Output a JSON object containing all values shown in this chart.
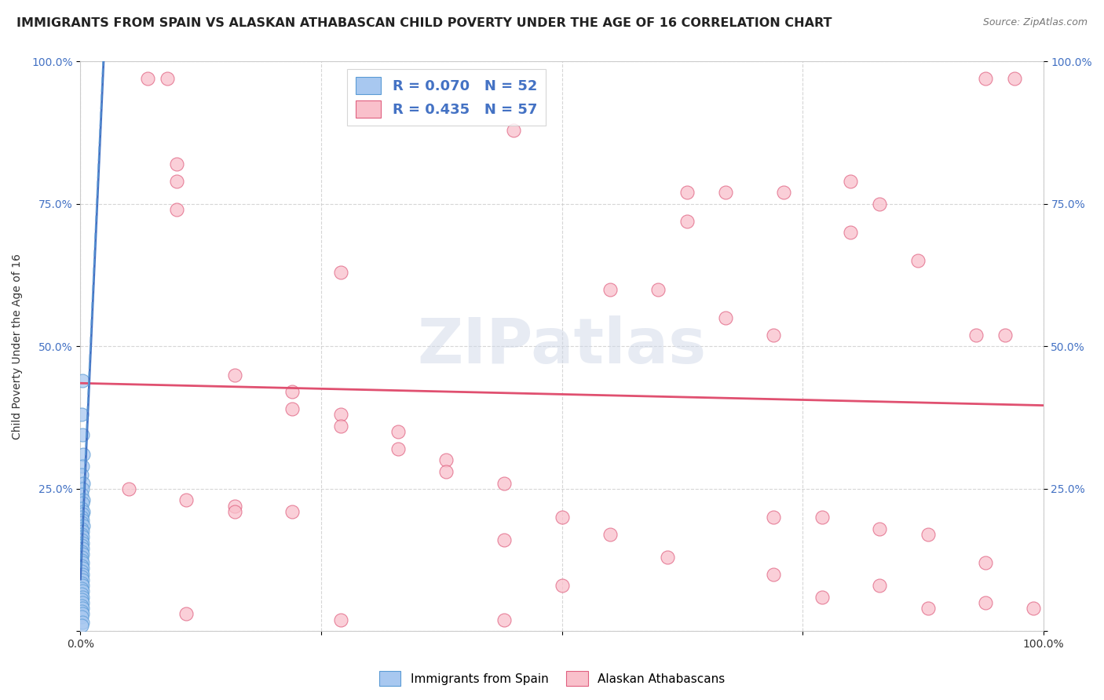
{
  "title": "IMMIGRANTS FROM SPAIN VS ALASKAN ATHABASCAN CHILD POVERTY UNDER THE AGE OF 16 CORRELATION CHART",
  "source": "Source: ZipAtlas.com",
  "ylabel": "Child Poverty Under the Age of 16",
  "xlim": [
    0,
    1
  ],
  "ylim": [
    0,
    1
  ],
  "xticks": [
    0,
    0.25,
    0.5,
    0.75,
    1.0
  ],
  "yticks": [
    0,
    0.25,
    0.5,
    0.75,
    1.0
  ],
  "xtick_labels": [
    "0.0%",
    "",
    "",
    "",
    "100.0%"
  ],
  "ytick_labels_left": [
    "",
    "25.0%",
    "50.0%",
    "75.0%",
    "100.0%"
  ],
  "ytick_labels_right": [
    "",
    "25.0%",
    "50.0%",
    "75.0%",
    "100.0%"
  ],
  "legend_blue_r": "R = 0.070",
  "legend_blue_n": "N = 52",
  "legend_pink_r": "R = 0.435",
  "legend_pink_n": "N = 57",
  "blue_label": "Immigrants from Spain",
  "pink_label": "Alaskan Athabascans",
  "background_color": "#ffffff",
  "grid_color": "#cccccc",
  "blue_fill": "#a8c8f0",
  "pink_fill": "#f9c0cb",
  "blue_edge": "#5b9bd5",
  "pink_edge": "#e06080",
  "blue_line_color": "#4472c4",
  "pink_line_color": "#e05070",
  "blue_scatter": [
    [
      0.002,
      0.44
    ],
    [
      0.001,
      0.38
    ],
    [
      0.002,
      0.345
    ],
    [
      0.003,
      0.31
    ],
    [
      0.002,
      0.29
    ],
    [
      0.001,
      0.275
    ],
    [
      0.003,
      0.26
    ],
    [
      0.002,
      0.25
    ],
    [
      0.001,
      0.24
    ],
    [
      0.003,
      0.23
    ],
    [
      0.002,
      0.225
    ],
    [
      0.001,
      0.215
    ],
    [
      0.003,
      0.21
    ],
    [
      0.002,
      0.205
    ],
    [
      0.001,
      0.2
    ],
    [
      0.002,
      0.195
    ],
    [
      0.001,
      0.19
    ],
    [
      0.003,
      0.185
    ],
    [
      0.001,
      0.18
    ],
    [
      0.002,
      0.175
    ],
    [
      0.001,
      0.17
    ],
    [
      0.002,
      0.165
    ],
    [
      0.001,
      0.16
    ],
    [
      0.002,
      0.155
    ],
    [
      0.001,
      0.15
    ],
    [
      0.002,
      0.145
    ],
    [
      0.001,
      0.14
    ],
    [
      0.002,
      0.135
    ],
    [
      0.001,
      0.13
    ],
    [
      0.001,
      0.125
    ],
    [
      0.002,
      0.12
    ],
    [
      0.001,
      0.115
    ],
    [
      0.002,
      0.11
    ],
    [
      0.001,
      0.105
    ],
    [
      0.002,
      0.1
    ],
    [
      0.001,
      0.095
    ],
    [
      0.002,
      0.09
    ],
    [
      0.001,
      0.085
    ],
    [
      0.002,
      0.08
    ],
    [
      0.001,
      0.075
    ],
    [
      0.002,
      0.07
    ],
    [
      0.001,
      0.065
    ],
    [
      0.002,
      0.06
    ],
    [
      0.001,
      0.055
    ],
    [
      0.002,
      0.05
    ],
    [
      0.001,
      0.045
    ],
    [
      0.002,
      0.04
    ],
    [
      0.001,
      0.035
    ],
    [
      0.002,
      0.03
    ],
    [
      0.001,
      0.025
    ],
    [
      0.002,
      0.015
    ],
    [
      0.001,
      0.01
    ]
  ],
  "pink_scatter": [
    [
      0.07,
      0.97
    ],
    [
      0.09,
      0.97
    ],
    [
      0.94,
      0.97
    ],
    [
      0.97,
      0.97
    ],
    [
      0.45,
      0.88
    ],
    [
      0.1,
      0.82
    ],
    [
      0.1,
      0.79
    ],
    [
      0.8,
      0.79
    ],
    [
      0.63,
      0.77
    ],
    [
      0.67,
      0.77
    ],
    [
      0.73,
      0.77
    ],
    [
      0.83,
      0.75
    ],
    [
      0.1,
      0.74
    ],
    [
      0.63,
      0.72
    ],
    [
      0.8,
      0.7
    ],
    [
      0.87,
      0.65
    ],
    [
      0.27,
      0.63
    ],
    [
      0.55,
      0.6
    ],
    [
      0.6,
      0.6
    ],
    [
      0.67,
      0.55
    ],
    [
      0.72,
      0.52
    ],
    [
      0.93,
      0.52
    ],
    [
      0.96,
      0.52
    ],
    [
      0.16,
      0.45
    ],
    [
      0.22,
      0.42
    ],
    [
      0.22,
      0.39
    ],
    [
      0.27,
      0.38
    ],
    [
      0.27,
      0.36
    ],
    [
      0.33,
      0.35
    ],
    [
      0.33,
      0.32
    ],
    [
      0.38,
      0.3
    ],
    [
      0.38,
      0.28
    ],
    [
      0.44,
      0.26
    ],
    [
      0.05,
      0.25
    ],
    [
      0.11,
      0.23
    ],
    [
      0.16,
      0.22
    ],
    [
      0.16,
      0.21
    ],
    [
      0.22,
      0.21
    ],
    [
      0.5,
      0.2
    ],
    [
      0.72,
      0.2
    ],
    [
      0.77,
      0.2
    ],
    [
      0.83,
      0.18
    ],
    [
      0.55,
      0.17
    ],
    [
      0.88,
      0.17
    ],
    [
      0.44,
      0.16
    ],
    [
      0.61,
      0.13
    ],
    [
      0.94,
      0.12
    ],
    [
      0.72,
      0.1
    ],
    [
      0.83,
      0.08
    ],
    [
      0.5,
      0.08
    ],
    [
      0.77,
      0.06
    ],
    [
      0.94,
      0.05
    ],
    [
      0.88,
      0.04
    ],
    [
      0.99,
      0.04
    ],
    [
      0.11,
      0.03
    ],
    [
      0.27,
      0.02
    ],
    [
      0.44,
      0.02
    ]
  ],
  "watermark_text": "ZIPatlas",
  "title_fontsize": 11.5,
  "axis_label_fontsize": 10,
  "tick_fontsize": 10
}
